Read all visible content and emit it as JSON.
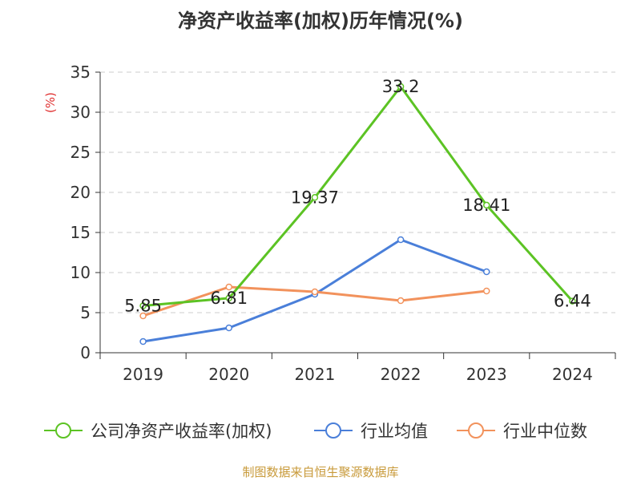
{
  "chart_data": {
    "type": "line",
    "title": "净资产收益率(加权)历年情况(%)",
    "ylabel": "(%)",
    "xlabel": "",
    "ylim": [
      0,
      35
    ],
    "yticks": [
      0,
      5,
      10,
      15,
      20,
      25,
      30,
      35
    ],
    "grid": true,
    "legend_position": "bottom",
    "categories": [
      "2019",
      "2020",
      "2021",
      "2022",
      "2023",
      "2024"
    ],
    "series": [
      {
        "name": "公司净资产收益率(加权)",
        "color": "#5cc324",
        "values": [
          5.85,
          6.81,
          19.37,
          33.2,
          18.41,
          6.44
        ],
        "value_labels": [
          "5.85",
          "6.81",
          "19.37",
          "33.2",
          "18.41",
          "6.44"
        ]
      },
      {
        "name": "行业均值",
        "color": "#4a7fd9",
        "values": [
          1.4,
          3.1,
          7.3,
          14.1,
          10.1,
          null
        ]
      },
      {
        "name": "行业中位数",
        "color": "#f2925c",
        "values": [
          4.6,
          8.2,
          7.6,
          6.5,
          7.7,
          null
        ]
      }
    ]
  },
  "source": "制图数据来自恒生聚源数据库"
}
